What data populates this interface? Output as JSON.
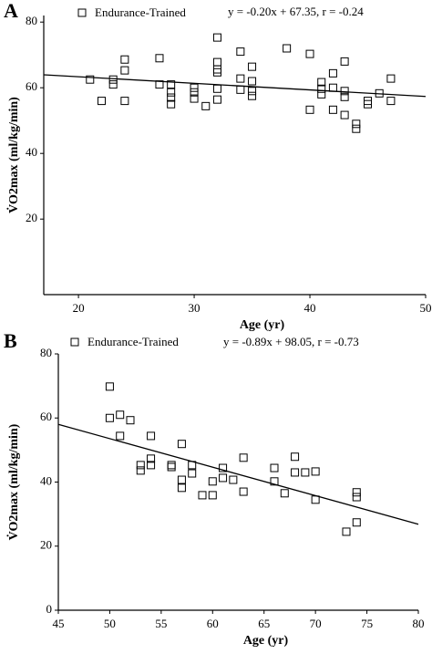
{
  "chart_data": [
    {
      "type": "scatter",
      "panel": "A",
      "annotation": "y =  -0.20x + 67.35, r = -0.24",
      "x_label": "Age (yr)",
      "y_label": "V̇O2max (ml/kg/min)",
      "xlim": [
        17,
        50
      ],
      "ylim": [
        -3,
        82
      ],
      "xticks": [
        20,
        30,
        40,
        50
      ],
      "yticks": [
        20,
        40,
        60,
        80
      ],
      "trend": {
        "slope": -0.2,
        "intercept": 67.35,
        "color": "#000000"
      },
      "x": [
        21,
        22,
        23,
        23,
        24,
        24,
        24,
        27,
        27,
        28,
        28,
        28,
        28,
        30,
        30,
        30,
        31,
        32,
        32,
        32,
        32,
        32,
        32,
        34,
        34,
        34,
        35,
        35,
        35,
        35,
        38,
        40,
        40,
        41,
        41,
        41,
        42,
        42,
        42,
        43,
        43,
        43,
        43,
        44,
        44,
        45,
        45,
        46,
        47,
        47
      ],
      "series": [
        {
          "name": "Endurance-Trained",
          "color": "#000000",
          "values": [
            62.5,
            56,
            62.5,
            61,
            68.6,
            65.3,
            56,
            69,
            61,
            61,
            58.6,
            57,
            55,
            60,
            58.6,
            56.7,
            54.4,
            75.3,
            67.8,
            65.6,
            64.7,
            59.7,
            56.4,
            71,
            62.8,
            59.4,
            66.4,
            62,
            59,
            57.5,
            72,
            70.3,
            53.3,
            61.7,
            59.7,
            58,
            64.4,
            60,
            53.3,
            68,
            59,
            57.2,
            51.7,
            49,
            47.5,
            56,
            55,
            58.3,
            62.8,
            56
          ]
        }
      ]
    },
    {
      "type": "scatter",
      "panel": "B",
      "annotation": "y =  -0.89x + 98.05, r = -0.73",
      "x_label": "Age (yr)",
      "y_label": "V̇O2max (ml/kg/min)",
      "xlim": [
        45,
        80
      ],
      "ylim": [
        0,
        80
      ],
      "xticks": [
        45,
        50,
        55,
        60,
        65,
        70,
        75,
        80
      ],
      "yticks": [
        0,
        20,
        40,
        60,
        80
      ],
      "trend": {
        "slope": -0.89,
        "intercept": 98.05,
        "color": "#000000"
      },
      "x": [
        50,
        50,
        51,
        51,
        52,
        53,
        53,
        54,
        54,
        54,
        56,
        56,
        57,
        57,
        57,
        58,
        58,
        59,
        60,
        60,
        61,
        61,
        62,
        63,
        63,
        66,
        66,
        67,
        68,
        68,
        69,
        70,
        70,
        73,
        74,
        74,
        74
      ],
      "series": [
        {
          "name": "Endurance-Trained",
          "color": "#000000",
          "values": [
            69.8,
            60,
            61,
            54.4,
            59.3,
            45.3,
            43.6,
            54.4,
            47.3,
            45.3,
            45.3,
            44.7,
            51.9,
            40.7,
            38.2,
            45.3,
            42.7,
            35.9,
            40.2,
            35.9,
            44.4,
            41.3,
            40.7,
            47.6,
            37,
            44.4,
            40.2,
            36.5,
            47.9,
            43,
            43,
            43.3,
            34.5,
            24.5,
            36.8,
            35.3,
            27.4
          ]
        }
      ]
    }
  ]
}
